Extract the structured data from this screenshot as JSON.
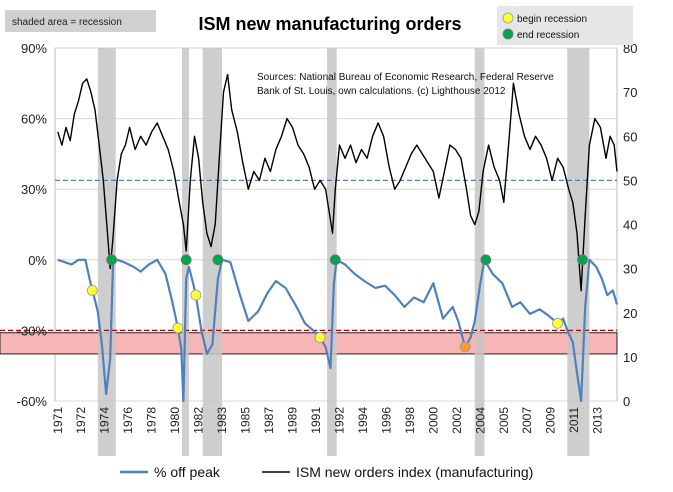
{
  "chart_data": {
    "type": "line",
    "title": "ISM new manufacturing orders",
    "note_recession": "shaded area = recession",
    "source_text_line1": "Sources: National Bureau of Economic Research, Federal Reserve",
    "source_text_line2": "Bank of St. Louis, own calculations. (c) Lighthouse 2012",
    "legend_begin": "begin recession",
    "legend_end": "end recession",
    "x_ticks": [
      "1971",
      "1972",
      "1974",
      "1976",
      "1978",
      "1980",
      "1982",
      "1983",
      "1985",
      "1987",
      "1989",
      "1991",
      "1992",
      "1994",
      "1996",
      "1998",
      "2000",
      "2002",
      "2004",
      "2005",
      "2007",
      "2009",
      "2011",
      "2013"
    ],
    "x_tick_years": [
      1971,
      1972.7,
      1974.4,
      1976.1,
      1977.8,
      1979.5,
      1981.2,
      1982.9,
      1984.6,
      1986.3,
      1988.0,
      1989.7,
      1991.4,
      1993.1,
      1994.8,
      1996.5,
      1998.2,
      1999.9,
      2001.6,
      2003.3,
      2005.0,
      2006.7,
      2008.4,
      2010.1
    ],
    "x_range": [
      1970.8,
      2011.5
    ],
    "left_axis": {
      "ticks": [
        "90%",
        "60%",
        "30%",
        "0%",
        "-30%",
        "-60%"
      ],
      "values": [
        90,
        60,
        30,
        0,
        -30,
        -60
      ],
      "range": [
        -60,
        90
      ]
    },
    "right_axis": {
      "ticks": [
        "80",
        "70",
        "60",
        "50",
        "40",
        "30",
        "20",
        "10",
        "0"
      ],
      "values": [
        80,
        70,
        60,
        50,
        40,
        30,
        20,
        10,
        0
      ],
      "range": [
        0,
        80
      ]
    },
    "recessions": [
      {
        "start": 1973.9,
        "end": 1975.2
      },
      {
        "start": 1980.0,
        "end": 1980.5
      },
      {
        "start": 1981.5,
        "end": 1982.9
      },
      {
        "start": 1990.5,
        "end": 1991.2
      },
      {
        "start": 2001.2,
        "end": 2001.9
      },
      {
        "start": 2007.9,
        "end": 2009.5
      }
    ],
    "begin_markers": [
      {
        "year": 1973.5,
        "value": -13
      },
      {
        "year": 1979.7,
        "value": -29
      },
      {
        "year": 1981.0,
        "value": -15
      },
      {
        "year": 1990.0,
        "value": -33
      },
      {
        "year": 2000.5,
        "value": -37,
        "highlight": true
      },
      {
        "year": 2007.2,
        "value": -27
      }
    ],
    "end_markers": [
      {
        "year": 1974.9,
        "value": 0
      },
      {
        "year": 1980.3,
        "value": 0
      },
      {
        "year": 1982.6,
        "value": 0
      },
      {
        "year": 1991.1,
        "value": 0
      },
      {
        "year": 2002.0,
        "value": 0
      },
      {
        "year": 2009.0,
        "value": 0
      }
    ],
    "reference_lines": {
      "ism_50": 50,
      "pct_red_dash": -30
    },
    "band": {
      "from": -31,
      "to": -40
    },
    "series": [
      {
        "name": "% off peak",
        "axis": "left",
        "color": "#4f81bd",
        "points": [
          [
            1971.0,
            0
          ],
          [
            1971.5,
            -1
          ],
          [
            1972.0,
            -2
          ],
          [
            1972.5,
            0
          ],
          [
            1973.0,
            0
          ],
          [
            1973.3,
            -8
          ],
          [
            1973.6,
            -15
          ],
          [
            1973.9,
            -22
          ],
          [
            1974.2,
            -36
          ],
          [
            1974.5,
            -57
          ],
          [
            1974.8,
            -42
          ],
          [
            1975.0,
            -2
          ],
          [
            1975.3,
            0
          ],
          [
            1975.8,
            -1
          ],
          [
            1976.5,
            -3
          ],
          [
            1977.0,
            -5
          ],
          [
            1977.6,
            -2
          ],
          [
            1978.2,
            0
          ],
          [
            1978.8,
            -6
          ],
          [
            1979.3,
            -18
          ],
          [
            1979.7,
            -29
          ],
          [
            1979.95,
            -38
          ],
          [
            1980.1,
            -60
          ],
          [
            1980.3,
            -8
          ],
          [
            1980.5,
            -3
          ],
          [
            1980.8,
            -10
          ],
          [
            1981.0,
            -15
          ],
          [
            1981.4,
            -30
          ],
          [
            1981.8,
            -40
          ],
          [
            1982.2,
            -36
          ],
          [
            1982.6,
            -8
          ],
          [
            1982.9,
            0
          ],
          [
            1983.5,
            -1
          ],
          [
            1984.2,
            -15
          ],
          [
            1984.8,
            -26
          ],
          [
            1985.5,
            -22
          ],
          [
            1986.2,
            -14
          ],
          [
            1986.8,
            -9
          ],
          [
            1987.5,
            -12
          ],
          [
            1988.3,
            -20
          ],
          [
            1988.9,
            -27
          ],
          [
            1989.5,
            -30
          ],
          [
            1990.0,
            -33
          ],
          [
            1990.4,
            -37
          ],
          [
            1990.75,
            -46
          ],
          [
            1991.0,
            -10
          ],
          [
            1991.2,
            0
          ],
          [
            1991.8,
            -2
          ],
          [
            1992.5,
            -6
          ],
          [
            1993.2,
            -9
          ],
          [
            1994.0,
            -12
          ],
          [
            1994.7,
            -11
          ],
          [
            1995.4,
            -15
          ],
          [
            1996.1,
            -20
          ],
          [
            1996.8,
            -16
          ],
          [
            1997.5,
            -18
          ],
          [
            1998.2,
            -10
          ],
          [
            1998.9,
            -25
          ],
          [
            1999.6,
            -20
          ],
          [
            2000.0,
            -26
          ],
          [
            2000.5,
            -37
          ],
          [
            2000.9,
            -33
          ],
          [
            2001.2,
            -26
          ],
          [
            2001.6,
            -10
          ],
          [
            2001.9,
            0
          ],
          [
            2002.5,
            -6
          ],
          [
            2003.2,
            -10
          ],
          [
            2003.9,
            -20
          ],
          [
            2004.5,
            -18
          ],
          [
            2005.2,
            -23
          ],
          [
            2005.9,
            -21
          ],
          [
            2006.6,
            -24
          ],
          [
            2007.2,
            -27
          ],
          [
            2007.6,
            -25
          ],
          [
            2007.9,
            -30
          ],
          [
            2008.3,
            -35
          ],
          [
            2008.6,
            -48
          ],
          [
            2008.9,
            -60
          ],
          [
            2009.2,
            -20
          ],
          [
            2009.5,
            0
          ],
          [
            2010.0,
            -3
          ],
          [
            2010.4,
            -8
          ],
          [
            2010.8,
            -15
          ],
          [
            2011.2,
            -13
          ],
          [
            2011.5,
            -19
          ]
        ]
      },
      {
        "name": "ISM new orders index (manufacturing)",
        "axis": "right",
        "color": "#000000",
        "points": [
          [
            1971.0,
            61
          ],
          [
            1971.3,
            58
          ],
          [
            1971.6,
            62
          ],
          [
            1971.9,
            59
          ],
          [
            1972.2,
            65
          ],
          [
            1972.5,
            68
          ],
          [
            1972.8,
            72
          ],
          [
            1973.1,
            73
          ],
          [
            1973.4,
            70
          ],
          [
            1973.7,
            66
          ],
          [
            1974.0,
            58
          ],
          [
            1974.3,
            50
          ],
          [
            1974.6,
            38
          ],
          [
            1974.8,
            30
          ],
          [
            1975.0,
            37
          ],
          [
            1975.3,
            50
          ],
          [
            1975.6,
            56
          ],
          [
            1975.9,
            58
          ],
          [
            1976.2,
            62
          ],
          [
            1976.6,
            57
          ],
          [
            1977.0,
            60
          ],
          [
            1977.4,
            58
          ],
          [
            1977.8,
            61
          ],
          [
            1978.2,
            63
          ],
          [
            1978.6,
            60
          ],
          [
            1979.0,
            57
          ],
          [
            1979.4,
            52
          ],
          [
            1979.8,
            45
          ],
          [
            1980.1,
            40
          ],
          [
            1980.3,
            34
          ],
          [
            1980.6,
            50
          ],
          [
            1980.9,
            60
          ],
          [
            1981.2,
            55
          ],
          [
            1981.5,
            45
          ],
          [
            1981.8,
            38
          ],
          [
            1982.1,
            35
          ],
          [
            1982.4,
            40
          ],
          [
            1982.7,
            55
          ],
          [
            1983.0,
            70
          ],
          [
            1983.3,
            74
          ],
          [
            1983.6,
            66
          ],
          [
            1984.0,
            61
          ],
          [
            1984.4,
            54
          ],
          [
            1984.8,
            48
          ],
          [
            1985.2,
            52
          ],
          [
            1985.6,
            50
          ],
          [
            1986.0,
            55
          ],
          [
            1986.4,
            52
          ],
          [
            1986.8,
            57
          ],
          [
            1987.2,
            60
          ],
          [
            1987.6,
            64
          ],
          [
            1988.0,
            62
          ],
          [
            1988.4,
            58
          ],
          [
            1988.8,
            56
          ],
          [
            1989.2,
            53
          ],
          [
            1989.6,
            48
          ],
          [
            1990.0,
            50
          ],
          [
            1990.4,
            48
          ],
          [
            1990.7,
            42
          ],
          [
            1990.9,
            38
          ],
          [
            1991.1,
            48
          ],
          [
            1991.4,
            58
          ],
          [
            1991.8,
            55
          ],
          [
            1992.2,
            58
          ],
          [
            1992.6,
            54
          ],
          [
            1993.0,
            57
          ],
          [
            1993.4,
            55
          ],
          [
            1993.8,
            60
          ],
          [
            1994.2,
            63
          ],
          [
            1994.6,
            60
          ],
          [
            1995.0,
            53
          ],
          [
            1995.4,
            48
          ],
          [
            1995.8,
            50
          ],
          [
            1996.2,
            53
          ],
          [
            1996.6,
            56
          ],
          [
            1997.0,
            58
          ],
          [
            1997.4,
            56
          ],
          [
            1997.8,
            54
          ],
          [
            1998.2,
            52
          ],
          [
            1998.6,
            46
          ],
          [
            1999.0,
            52
          ],
          [
            1999.4,
            58
          ],
          [
            1999.8,
            57
          ],
          [
            2000.2,
            55
          ],
          [
            2000.6,
            48
          ],
          [
            2000.9,
            42
          ],
          [
            2001.2,
            40
          ],
          [
            2001.5,
            43
          ],
          [
            2001.8,
            52
          ],
          [
            2002.2,
            58
          ],
          [
            2002.6,
            53
          ],
          [
            2003.0,
            50
          ],
          [
            2003.3,
            45
          ],
          [
            2003.7,
            60
          ],
          [
            2004.0,
            72
          ],
          [
            2004.4,
            65
          ],
          [
            2004.8,
            60
          ],
          [
            2005.2,
            57
          ],
          [
            2005.6,
            60
          ],
          [
            2006.0,
            58
          ],
          [
            2006.4,
            55
          ],
          [
            2006.8,
            50
          ],
          [
            2007.2,
            55
          ],
          [
            2007.6,
            53
          ],
          [
            2008.0,
            48
          ],
          [
            2008.3,
            45
          ],
          [
            2008.6,
            38
          ],
          [
            2008.9,
            25
          ],
          [
            2009.2,
            42
          ],
          [
            2009.5,
            58
          ],
          [
            2009.9,
            64
          ],
          [
            2010.3,
            62
          ],
          [
            2010.7,
            55
          ],
          [
            2011.0,
            60
          ],
          [
            2011.3,
            58
          ],
          [
            2011.5,
            52
          ]
        ]
      }
    ]
  }
}
